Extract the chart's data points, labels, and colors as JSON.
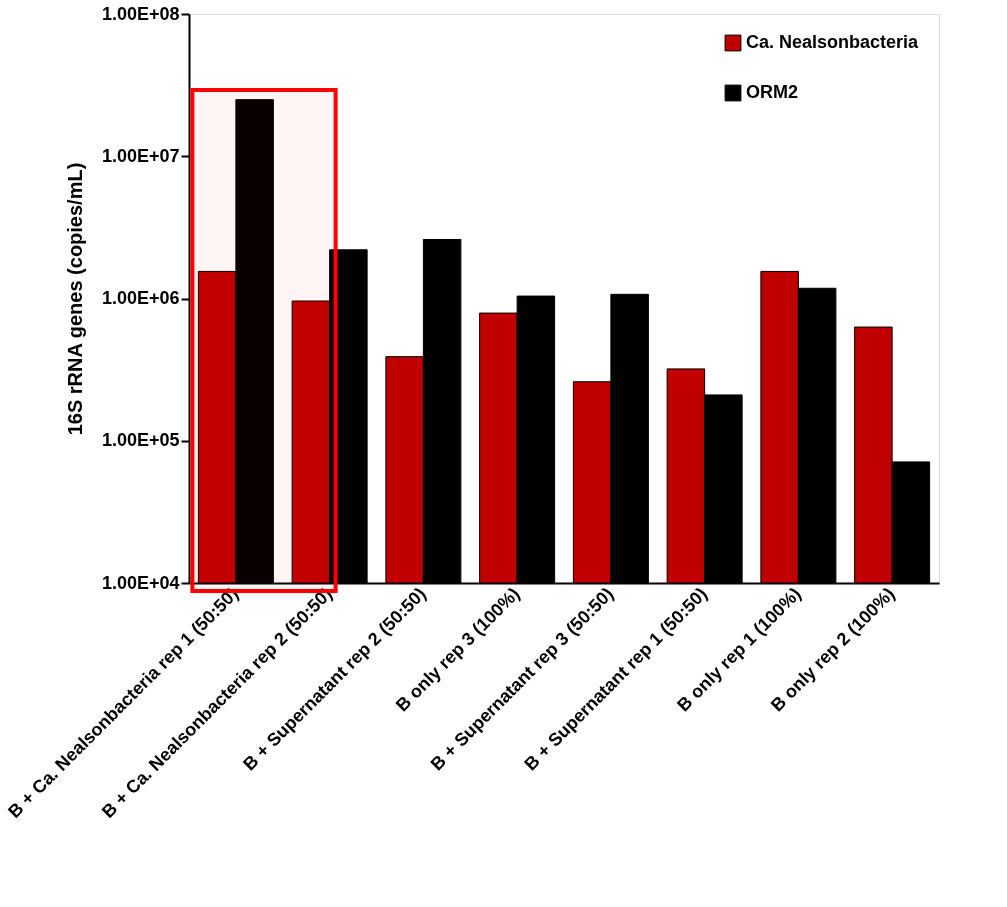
{
  "chart_data": {
    "type": "bar",
    "ylabel": "16S rRNA genes (copies/mL)",
    "categories": [
      "B + Ca. Nealsonbacteria rep 1 (50:50)",
      "B + Ca. Nealsonbacteria rep 2 (50:50)",
      "B + Supernatant rep 2 (50:50)",
      "B only rep 3 (100%)",
      "B + Supernatant rep 3 (50:50)",
      "B + Supernatant rep 1 (50:50)",
      "B only rep 1 (100%)",
      "B only rep 2 (100%)"
    ],
    "series": [
      {
        "name": "Ca. Nealsonbacteria",
        "color": "#c00000",
        "values": [
          1550000,
          960000,
          390000,
          790000,
          260000,
          320000,
          1550000,
          630000
        ]
      },
      {
        "name": "ORM2",
        "color": "#000000",
        "values": [
          25000000,
          2200000,
          2600000,
          1040000,
          1070000,
          210000,
          1180000,
          71000
        ]
      }
    ],
    "log": "y",
    "ylim": [
      10000,
      100000000
    ],
    "yticks": [
      {
        "value": 10000,
        "label": "1.00E+04"
      },
      {
        "value": 100000,
        "label": "1.00E+05"
      },
      {
        "value": 1000000,
        "label": "1.00E+06"
      },
      {
        "value": 10000000,
        "label": "1.00E+07"
      },
      {
        "value": 100000000,
        "label": "1.00E+08"
      }
    ],
    "bands": [
      {
        "axis": "x",
        "from": "B + Ca. Nealsonbacteria rep 1 (50:50)",
        "to": "B + Ca. Nealsonbacteria rep 2 (50:50)",
        "color": "#ff0000"
      }
    ],
    "legend": "top right",
    "grid": false
  }
}
